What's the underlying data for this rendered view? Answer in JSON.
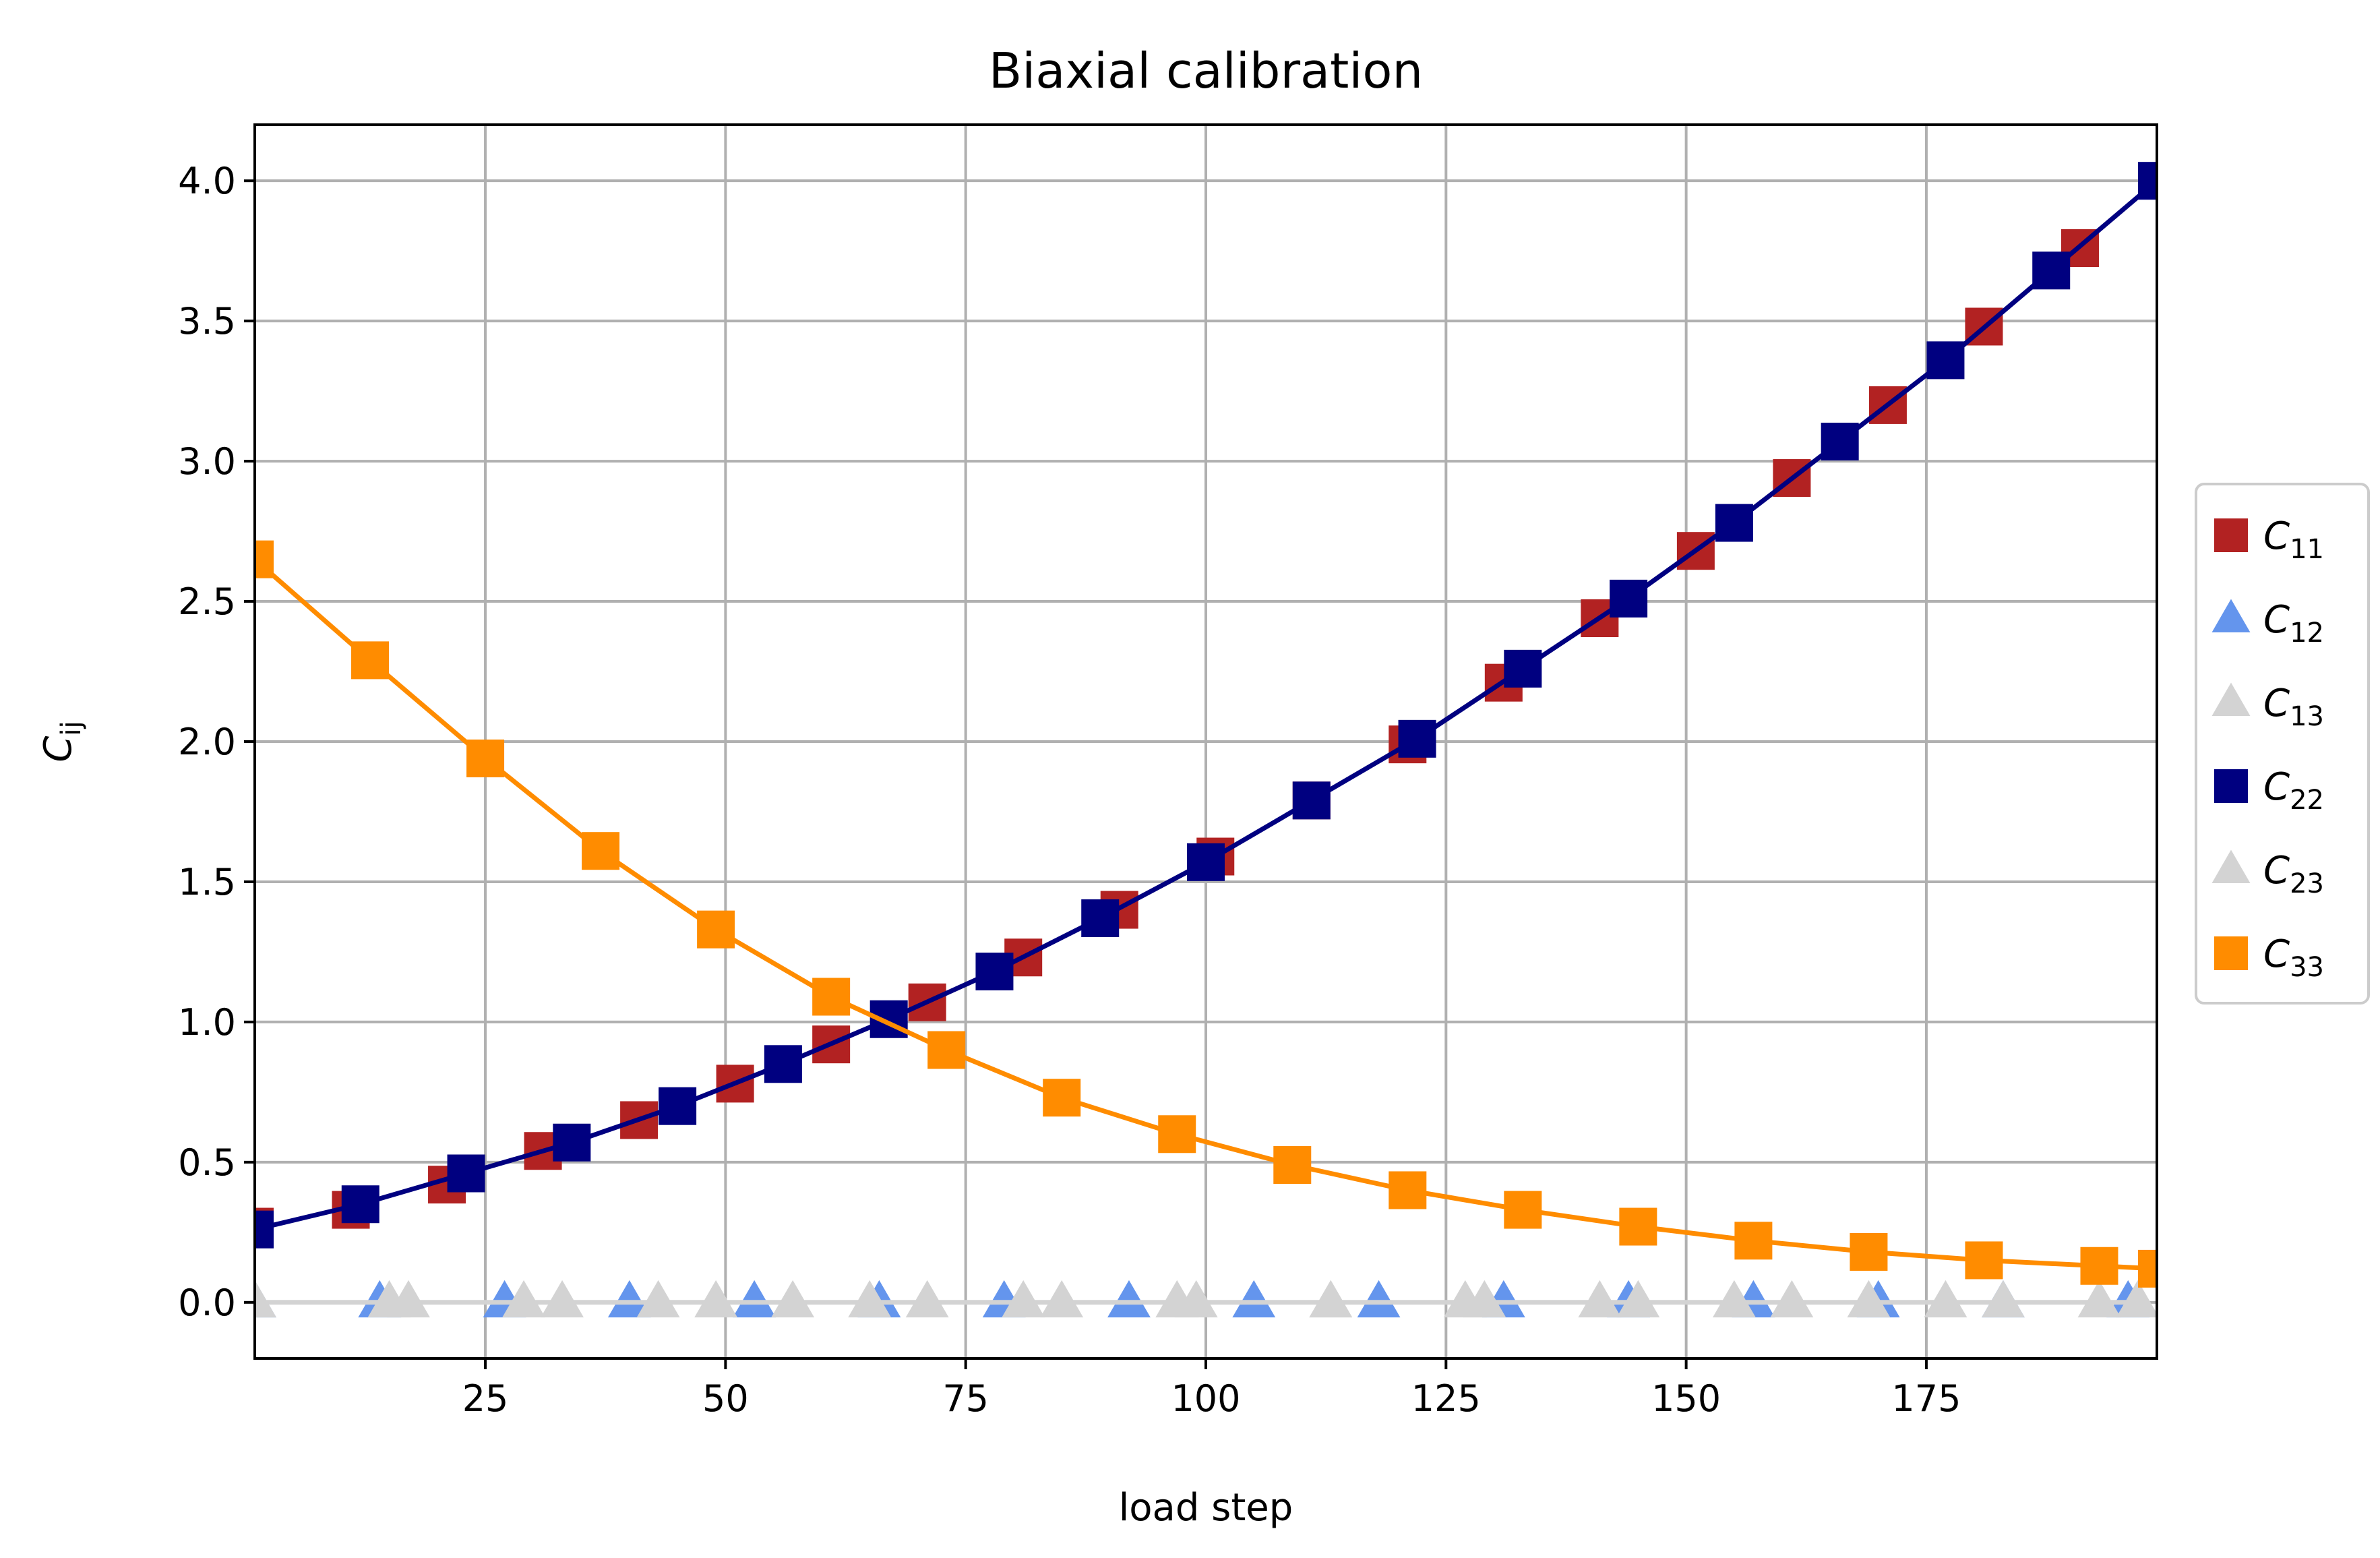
{
  "chart_data": {
    "type": "line",
    "title": "Biaxial calibration",
    "xlabel": "load step",
    "ylabel": "C",
    "ylabel_sub": "ij",
    "xlim": [
      1,
      199
    ],
    "ylim": [
      -0.2,
      4.2
    ],
    "xticks": [
      25,
      50,
      75,
      100,
      125,
      150,
      175
    ],
    "xtick_labels": [
      "25",
      "50",
      "75",
      "100",
      "125",
      "150",
      "175"
    ],
    "yticks": [
      0.0,
      0.5,
      1.0,
      1.5,
      2.0,
      2.5,
      3.0,
      3.5,
      4.0
    ],
    "ytick_labels": [
      "0.0",
      "0.5",
      "1.0",
      "1.5",
      "2.0",
      "2.5",
      "3.0",
      "3.5",
      "4.0"
    ],
    "grid": true,
    "legend_position": "outside-right",
    "series": [
      {
        "name": "C",
        "sub": "11",
        "color": "#b22222",
        "marker": "square",
        "line": false,
        "x": [
          1,
          11,
          21,
          31,
          41,
          51,
          61,
          71,
          81,
          91,
          101,
          111,
          121,
          131,
          141,
          151,
          161,
          171,
          181,
          191
        ],
        "y": [
          0.27,
          0.33,
          0.42,
          0.54,
          0.65,
          0.78,
          0.92,
          1.07,
          1.23,
          1.4,
          1.59,
          1.79,
          1.99,
          2.21,
          2.44,
          2.68,
          2.94,
          3.2,
          3.48,
          3.76
        ]
      },
      {
        "name": "C",
        "sub": "12",
        "color": "#6495ed",
        "marker": "triangle",
        "line": false,
        "x": [
          1,
          14,
          27,
          40,
          53,
          66,
          79,
          92,
          105,
          118,
          131,
          144,
          157,
          170,
          183,
          196
        ],
        "y": [
          0,
          0,
          0,
          0,
          0,
          0,
          0,
          0,
          0,
          0,
          0,
          0,
          0,
          0,
          0,
          0
        ]
      },
      {
        "name": "C",
        "sub": "13",
        "color": "#d3d3d3",
        "marker": "triangle",
        "line": false,
        "x": [
          1,
          17,
          33,
          49,
          65,
          81,
          97,
          113,
          129,
          145,
          161,
          177,
          193
        ],
        "y": [
          0,
          0,
          0,
          0,
          0,
          0,
          0,
          0,
          0,
          0,
          0,
          0,
          0
        ]
      },
      {
        "name": "C",
        "sub": "22",
        "color": "#000080",
        "marker": "square",
        "line": true,
        "x": [
          1,
          12,
          23,
          34,
          45,
          56,
          67,
          78,
          89,
          100,
          111,
          122,
          133,
          144,
          155,
          166,
          177,
          188,
          199
        ],
        "y": [
          0.26,
          0.35,
          0.46,
          0.57,
          0.7,
          0.85,
          1.01,
          1.18,
          1.37,
          1.57,
          1.79,
          2.01,
          2.26,
          2.51,
          2.78,
          3.07,
          3.36,
          3.68,
          4.0
        ]
      },
      {
        "name": "C",
        "sub": "23",
        "color": "#d3d3d3",
        "marker": "triangle",
        "line": true,
        "x": [
          1,
          15,
          29,
          43,
          57,
          71,
          85,
          99,
          113,
          127,
          141,
          155,
          169,
          183,
          197
        ],
        "y": [
          0,
          0,
          0,
          0,
          0,
          0,
          0,
          0,
          0,
          0,
          0,
          0,
          0,
          0,
          0
        ]
      },
      {
        "name": "C",
        "sub": "33",
        "color": "#ff8c00",
        "marker": "square",
        "line": true,
        "x": [
          1,
          13,
          25,
          37,
          49,
          61,
          73,
          85,
          97,
          109,
          121,
          133,
          145,
          157,
          169,
          181,
          193,
          199
        ],
        "y": [
          2.65,
          2.29,
          1.94,
          1.61,
          1.33,
          1.09,
          0.9,
          0.73,
          0.6,
          0.49,
          0.4,
          0.33,
          0.27,
          0.22,
          0.18,
          0.15,
          0.13,
          0.12
        ]
      }
    ]
  }
}
